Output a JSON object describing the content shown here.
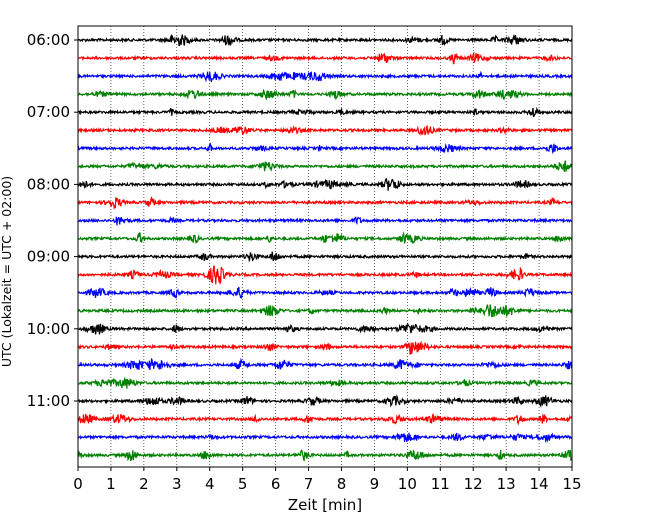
{
  "chart_data": {
    "type": "line",
    "title": "",
    "xlabel": "Zeit  [min]",
    "ylabel": "UTC (Lokalzeit = UTC + 02:00)",
    "xlim": [
      0,
      15
    ],
    "x_ticks": [
      "0",
      "1",
      "2",
      "3",
      "4",
      "5",
      "6",
      "7",
      "8",
      "9",
      "10",
      "11",
      "12",
      "13",
      "14",
      "15"
    ],
    "y_tick_labels": [
      "06:00",
      "07:00",
      "08:00",
      "09:00",
      "10:00",
      "11:00"
    ],
    "grid": "vertical dotted at each minute",
    "legend": "none",
    "colors": [
      "#000000",
      "#ff0000",
      "#0000ff",
      "#008000"
    ],
    "trace_offset_minutes": 15,
    "traces": [
      {
        "start": "06:00",
        "color": "#000000"
      },
      {
        "start": "06:15",
        "color": "#ff0000"
      },
      {
        "start": "06:30",
        "color": "#0000ff"
      },
      {
        "start": "06:45",
        "color": "#008000"
      },
      {
        "start": "07:00",
        "color": "#000000"
      },
      {
        "start": "07:15",
        "color": "#ff0000"
      },
      {
        "start": "07:30",
        "color": "#0000ff"
      },
      {
        "start": "07:45",
        "color": "#008000"
      },
      {
        "start": "08:00",
        "color": "#000000"
      },
      {
        "start": "08:15",
        "color": "#ff0000"
      },
      {
        "start": "08:30",
        "color": "#0000ff"
      },
      {
        "start": "08:45",
        "color": "#008000"
      },
      {
        "start": "09:00",
        "color": "#000000"
      },
      {
        "start": "09:15",
        "color": "#ff0000"
      },
      {
        "start": "09:30",
        "color": "#0000ff"
      },
      {
        "start": "09:45",
        "color": "#008000"
      },
      {
        "start": "10:00",
        "color": "#000000"
      },
      {
        "start": "10:15",
        "color": "#ff0000"
      },
      {
        "start": "10:30",
        "color": "#0000ff"
      },
      {
        "start": "10:45",
        "color": "#008000"
      },
      {
        "start": "11:00",
        "color": "#000000"
      },
      {
        "start": "11:15",
        "color": "#ff0000"
      },
      {
        "start": "11:30",
        "color": "#0000ff"
      },
      {
        "start": "11:45",
        "color": "#008000"
      }
    ]
  }
}
